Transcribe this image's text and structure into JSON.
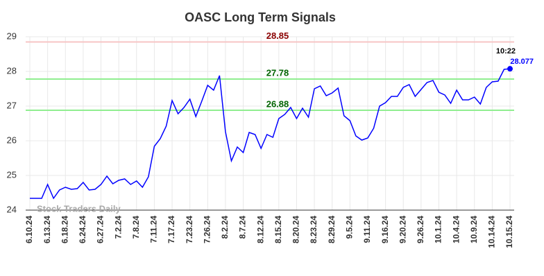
{
  "chart_data": {
    "type": "line",
    "title": "OASC Long Term Signals",
    "categories": [
      "6.10.24",
      null,
      null,
      "6.13.24",
      null,
      null,
      "6.18.24",
      null,
      null,
      "6.24.24",
      null,
      null,
      "6.27.24",
      null,
      null,
      "7.2.24",
      null,
      null,
      "7.8.24",
      null,
      null,
      "7.11.24",
      null,
      null,
      "7.17.24",
      null,
      null,
      "7.23.24",
      null,
      null,
      "7.26.24",
      null,
      null,
      "8.2.24",
      null,
      null,
      "8.7.24",
      null,
      null,
      "8.12.24",
      null,
      null,
      "8.15.24",
      null,
      null,
      "8.20.24",
      null,
      null,
      "8.23.24",
      null,
      null,
      "8.29.24",
      null,
      null,
      "9.5.24",
      null,
      null,
      "9.11.24",
      null,
      null,
      "9.16.24",
      null,
      null,
      "9.20.24",
      null,
      null,
      "9.26.24",
      null,
      null,
      "10.1.24",
      null,
      null,
      "10.4.24",
      null,
      null,
      "10.9.24",
      null,
      null,
      "10.14.24",
      null,
      null,
      "10.15.24"
    ],
    "values": [
      24.34,
      24.34,
      24.34,
      24.74,
      24.34,
      24.58,
      24.66,
      24.6,
      24.62,
      24.8,
      24.58,
      24.6,
      24.74,
      24.98,
      24.76,
      24.86,
      24.9,
      24.74,
      24.84,
      24.66,
      24.96,
      25.84,
      26.06,
      26.42,
      27.16,
      26.78,
      26.96,
      27.2,
      26.7,
      27.14,
      27.6,
      27.46,
      27.88,
      26.26,
      25.42,
      25.82,
      25.66,
      26.24,
      26.18,
      25.78,
      26.18,
      26.1,
      26.64,
      26.76,
      26.96,
      26.64,
      26.94,
      26.68,
      27.5,
      27.58,
      27.3,
      27.38,
      27.52,
      26.72,
      26.58,
      26.14,
      26.02,
      26.08,
      26.36,
      27.0,
      27.1,
      27.28,
      27.28,
      27.54,
      27.62,
      27.28,
      27.48,
      27.68,
      27.74,
      27.4,
      27.32,
      27.08,
      27.46,
      27.18,
      27.18,
      27.26,
      27.06,
      27.54,
      27.7,
      27.72,
      28.06,
      28.077
    ],
    "color": "#0000ff",
    "ylim": [
      24,
      29
    ],
    "yticks": [
      24,
      25,
      26,
      27,
      28,
      29
    ],
    "grid": true,
    "hlines": [
      {
        "value": 28.85,
        "color": "#f7c5c5",
        "label_color": "#8b0000"
      },
      {
        "value": 27.78,
        "color": "#90ee90",
        "label_color": "#006400"
      },
      {
        "value": 26.88,
        "color": "#90ee90",
        "label_color": "#006400"
      }
    ],
    "last_time": "10:22",
    "watermark": "Stock Traders Daily"
  }
}
